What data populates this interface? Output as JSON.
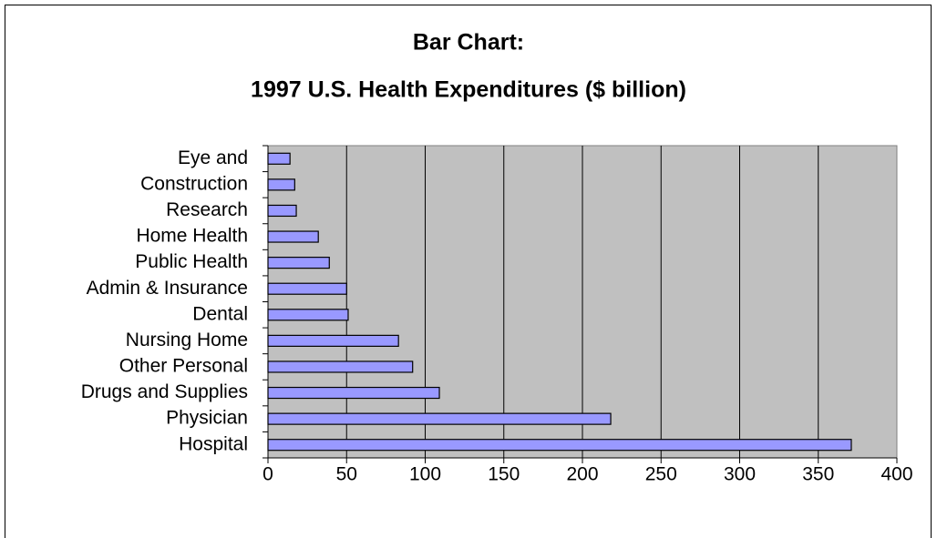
{
  "chart_data": {
    "type": "bar",
    "orientation": "horizontal",
    "title": "Bar Chart:",
    "subtitle": "1997 U.S. Health Expenditures ($ billion)",
    "categories": [
      "Eye and",
      "Construction",
      "Research",
      "Home Health",
      "Public Health",
      "Admin & Insurance",
      "Dental",
      "Nursing Home",
      "Other Personal",
      "Drugs and Supplies",
      "Physician",
      "Hospital"
    ],
    "values": [
      14,
      17,
      18,
      32,
      39,
      50,
      51,
      83,
      92,
      109,
      218,
      371
    ],
    "color": "#9999ff",
    "xlim": [
      0,
      400
    ],
    "xticks": [
      0,
      50,
      100,
      150,
      200,
      250,
      300,
      350,
      400
    ],
    "grid": true
  }
}
